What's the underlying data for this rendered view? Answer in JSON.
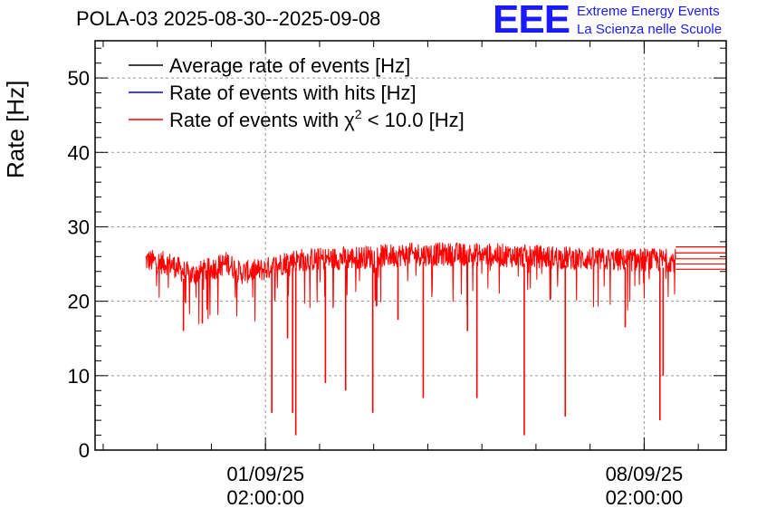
{
  "chart_data": {
    "type": "line",
    "title": "POLA-03 2025-08-30--2025-09-08",
    "ylabel": "Rate [Hz]",
    "xlabel": "",
    "ylim": [
      0,
      55
    ],
    "yticks": [
      0,
      10,
      20,
      30,
      40,
      50
    ],
    "xticks": [
      {
        "pos": 0.27,
        "line1": "01/09/25",
        "line2": "02:00:00"
      },
      {
        "pos": 0.87,
        "line1": "08/09/25",
        "line2": "02:00:00"
      }
    ],
    "legend": [
      {
        "label": "Average rate of events [Hz]",
        "color": "#000000"
      },
      {
        "label": "Rate of events with hits [Hz]",
        "color": "#0000ff"
      },
      {
        "label_prefix": "Rate of events with ",
        "label_symbol": "χ",
        "label_sup": "2",
        "label_suffix": " < 10.0 [Hz]",
        "color": "#ff0000"
      }
    ],
    "series": [
      {
        "name": "Rate of events with chi2 < 10.0 [Hz]",
        "color": "#ff0000",
        "baseline": [
          {
            "x": 0.08,
            "y": 25.5
          },
          {
            "x": 0.12,
            "y": 25.0
          },
          {
            "x": 0.15,
            "y": 23.5
          },
          {
            "x": 0.19,
            "y": 24.5
          },
          {
            "x": 0.21,
            "y": 25.2
          },
          {
            "x": 0.23,
            "y": 23.8
          },
          {
            "x": 0.27,
            "y": 24.3
          },
          {
            "x": 0.31,
            "y": 25.5
          },
          {
            "x": 0.4,
            "y": 25.8
          },
          {
            "x": 0.5,
            "y": 26.3
          },
          {
            "x": 0.6,
            "y": 26.3
          },
          {
            "x": 0.7,
            "y": 26.0
          },
          {
            "x": 0.8,
            "y": 25.6
          },
          {
            "x": 0.92,
            "y": 25.5
          }
        ],
        "dips": [
          {
            "x": 0.28,
            "y": 5.0
          },
          {
            "x": 0.305,
            "y": 15.0
          },
          {
            "x": 0.313,
            "y": 5.0
          },
          {
            "x": 0.318,
            "y": 2.0
          },
          {
            "x": 0.365,
            "y": 9.0
          },
          {
            "x": 0.397,
            "y": 8.0
          },
          {
            "x": 0.44,
            "y": 5.0
          },
          {
            "x": 0.52,
            "y": 7.0
          },
          {
            "x": 0.605,
            "y": 7.0
          },
          {
            "x": 0.68,
            "y": 2.0
          },
          {
            "x": 0.745,
            "y": 4.5
          },
          {
            "x": 0.895,
            "y": 4.0
          },
          {
            "x": 0.9,
            "y": 10.0
          },
          {
            "x": 0.14,
            "y": 16.0
          },
          {
            "x": 0.17,
            "y": 17.0
          },
          {
            "x": 0.48,
            "y": 17.5
          },
          {
            "x": 0.59,
            "y": 16.0
          },
          {
            "x": 0.84,
            "y": 16.5
          }
        ],
        "flat_end": [
          25.0,
          25.7,
          26.5,
          27.3,
          24.3
        ]
      }
    ]
  }
}
